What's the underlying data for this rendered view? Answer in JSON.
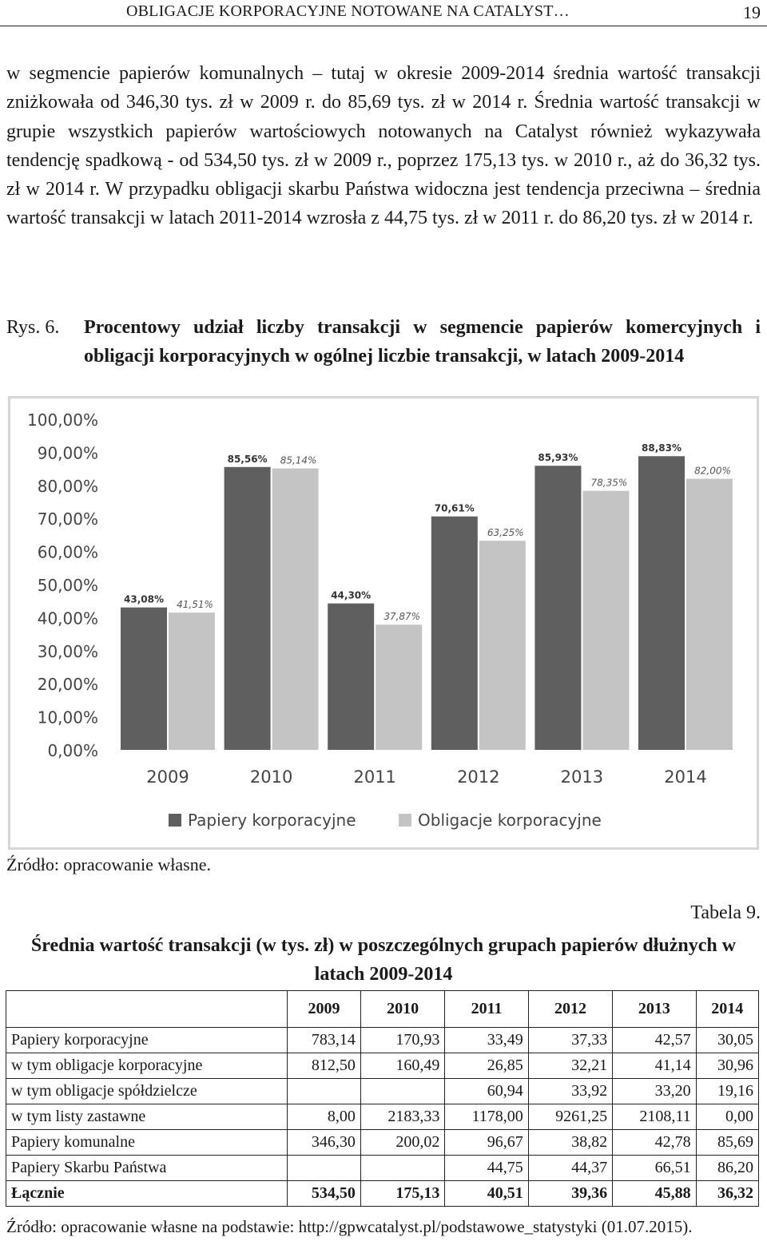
{
  "header": {
    "title": "OBLIGACJE KORPORACYJNE NOTOWANE NA CATALYST…",
    "page": "19"
  },
  "paragraph": "w segmencie papierów komunalnych – tutaj w okresie 2009-2014 średnia wartość transakcji zniżkowała od 346,30 tys. zł w 2009 r. do 85,69 tys. zł w 2014 r. Średnia wartość transakcji w grupie wszystkich papierów wartościowych notowanych na Catalyst również wykazywała tendencję spadkową - od 534,50 tys. zł w 2009 r., poprzez 175,13 tys. w 2010 r., aż do 36,32 tys. zł w 2014 r. W przypadku obligacji skarbu Państwa widoczna jest tendencja przeciwna – średnia wartość transakcji w latach 2011-2014 wzrosła z 44,75 tys. zł w 2011 r. do 86,20 tys. zł w 2014 r.",
  "figure": {
    "number": "Rys. 6.",
    "caption": "Procentowy udział liczby transakcji w segmencie papierów komercyjnych i obligacji korporacyjnych w ogólnej liczbie transakcji, w latach 2009-2014",
    "source": "Źródło: opracowanie własne."
  },
  "chart_data": {
    "type": "bar",
    "categories": [
      "2009",
      "2010",
      "2011",
      "2012",
      "2013",
      "2014"
    ],
    "series": [
      {
        "name": "Papiery korporacyjne",
        "values": [
          43.08,
          85.56,
          44.3,
          70.61,
          85.93,
          88.83
        ],
        "labels": [
          "43,08%",
          "85,56%",
          "44,30%",
          "70,61%",
          "85,93%",
          "88,83%"
        ],
        "color": "#5f5f5f"
      },
      {
        "name": "Obligacje korporacyjne",
        "values": [
          41.51,
          85.14,
          37.87,
          63.25,
          78.35,
          82.0
        ],
        "labels": [
          "41,51%",
          "85,14%",
          "37,87%",
          "63,25%",
          "78,35%",
          "82,00%"
        ],
        "color": "#c4c4c4"
      }
    ],
    "yticks": [
      "0,00%",
      "10,00%",
      "20,00%",
      "30,00%",
      "40,00%",
      "50,00%",
      "60,00%",
      "70,00%",
      "80,00%",
      "90,00%",
      "100,00%"
    ],
    "ylim": [
      0,
      100
    ],
    "grid": false,
    "legend": "bottom"
  },
  "table": {
    "label": "Tabela 9.",
    "title": "Średnia wartość transakcji (w tys. zł) w poszczególnych grupach papierów dłużnych w latach 2009-2014",
    "columns": [
      "",
      "2009",
      "2010",
      "2011",
      "2012",
      "2013",
      "2014"
    ],
    "rows": [
      [
        "Papiery korporacyjne",
        "783,14",
        "170,93",
        "33,49",
        "37,33",
        "42,57",
        "30,05"
      ],
      [
        "w tym obligacje korporacyjne",
        "812,50",
        "160,49",
        "26,85",
        "32,21",
        "41,14",
        "30,96"
      ],
      [
        "w tym obligacje spółdzielcze",
        "",
        "",
        "60,94",
        "33,92",
        "33,20",
        "19,16"
      ],
      [
        "w tym listy zastawne",
        "8,00",
        "2183,33",
        "1178,00",
        "9261,25",
        "2108,11",
        "0,00"
      ],
      [
        "Papiery komunalne",
        "346,30",
        "200,02",
        "96,67",
        "38,82",
        "42,78",
        "85,69"
      ],
      [
        "Papiery Skarbu Państwa",
        "",
        "",
        "44,75",
        "44,37",
        "66,51",
        "86,20"
      ],
      [
        "Łącznie",
        "534,50",
        "175,13",
        "40,51",
        "39,36",
        "45,88",
        "36,32"
      ]
    ],
    "source": "Źródło: opracowanie własne na podstawie: http://gpwcatalyst.pl/podstawowe_statystyki (01.07.2015)."
  }
}
